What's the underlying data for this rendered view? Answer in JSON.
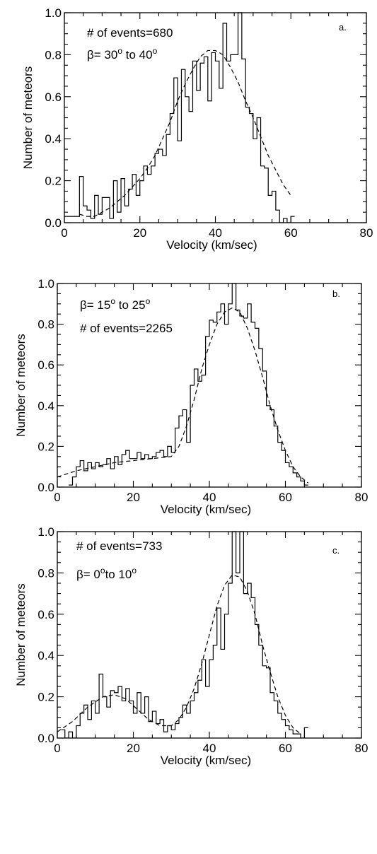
{
  "chart_data": [
    {
      "type": "line",
      "panel_label": "a.",
      "annotations": [
        "# of events=680",
        "β= 30° to 40°"
      ],
      "annotation_parts": [
        {
          "text": "# of events=680"
        },
        {
          "pre": "β= 30",
          "sup1": "o",
          "mid": " to 40",
          "sup2": "o"
        }
      ],
      "xlabel": "Velocity (km/sec)",
      "ylabel": "Number of meteors",
      "xlim": [
        0,
        80
      ],
      "ylim": [
        0,
        1.0
      ],
      "xticks": [
        "0",
        "20",
        "40",
        "60",
        "80"
      ],
      "yticks": [
        "0.0",
        "0.2",
        "0.4",
        "0.6",
        "0.8",
        "1.0"
      ],
      "series": [
        {
          "style": "histogram-step",
          "bin_width": 1,
          "x": [
            0,
            1,
            2,
            3,
            4,
            5,
            6,
            7,
            8,
            9,
            10,
            11,
            12,
            13,
            14,
            15,
            16,
            17,
            18,
            19,
            20,
            21,
            22,
            23,
            24,
            25,
            26,
            27,
            28,
            29,
            30,
            31,
            32,
            33,
            34,
            35,
            36,
            37,
            38,
            39,
            40,
            41,
            42,
            43,
            44,
            45,
            46,
            47,
            48,
            49,
            50,
            51,
            52,
            53,
            54,
            55,
            56,
            57,
            58,
            59,
            60
          ],
          "y": [
            0.03,
            0.03,
            0.03,
            0.03,
            0.22,
            0.08,
            0.06,
            0.02,
            0.13,
            0.04,
            0.12,
            0.12,
            0.02,
            0.2,
            0.05,
            0.21,
            0.08,
            0.16,
            0.23,
            0.13,
            0.2,
            0.27,
            0.23,
            0.27,
            0.33,
            0.35,
            0.32,
            0.42,
            0.52,
            0.69,
            0.39,
            0.73,
            0.6,
            0.53,
            0.77,
            0.63,
            0.76,
            0.79,
            0.58,
            0.81,
            0.77,
            0.64,
            0.95,
            0.77,
            0.8,
            0.8,
            1.0,
            0.78,
            0.55,
            0.52,
            0.4,
            0.5,
            0.27,
            0.26,
            0.13,
            0.15,
            0.06,
            0.0,
            0.02,
            0.0,
            0.03
          ]
        },
        {
          "style": "dashed-fit",
          "x": [
            4,
            6,
            8,
            10,
            12,
            14,
            16,
            18,
            20,
            22,
            24,
            26,
            28,
            30,
            32,
            34,
            36,
            38,
            40,
            42,
            44,
            46,
            48,
            50,
            52,
            54,
            56,
            58,
            60
          ],
          "y": [
            0.04,
            0.03,
            0.03,
            0.05,
            0.07,
            0.1,
            0.13,
            0.17,
            0.21,
            0.26,
            0.32,
            0.4,
            0.48,
            0.58,
            0.66,
            0.73,
            0.79,
            0.82,
            0.82,
            0.8,
            0.74,
            0.67,
            0.58,
            0.5,
            0.41,
            0.32,
            0.25,
            0.18,
            0.13
          ]
        }
      ]
    },
    {
      "type": "line",
      "panel_label": "b.",
      "annotations": [
        "β= 15° to 25°",
        "# of events=2265"
      ],
      "annotation_parts": [
        {
          "pre": "β= 15",
          "sup1": "o",
          "mid": " to 25",
          "sup2": "o"
        },
        {
          "text": "# of events=2265"
        }
      ],
      "xlabel": "Velocity (km/sec)",
      "ylabel": "Number of meteors",
      "xlim": [
        0,
        80
      ],
      "ylim": [
        0,
        1.0
      ],
      "xticks": [
        "0",
        "20",
        "40",
        "60",
        "80"
      ],
      "yticks": [
        "0.0",
        "0.2",
        "0.4",
        "0.6",
        "0.8",
        "1.0"
      ],
      "series": [
        {
          "style": "histogram-step",
          "bin_width": 1,
          "x": [
            3,
            4,
            5,
            6,
            7,
            8,
            9,
            10,
            11,
            12,
            13,
            14,
            15,
            16,
            17,
            18,
            19,
            20,
            21,
            22,
            23,
            24,
            25,
            26,
            27,
            28,
            29,
            30,
            31,
            32,
            33,
            34,
            35,
            36,
            37,
            38,
            39,
            40,
            41,
            42,
            43,
            44,
            45,
            46,
            47,
            48,
            49,
            50,
            51,
            52,
            53,
            54,
            55,
            56,
            57,
            58,
            59,
            60,
            61,
            62,
            63,
            64,
            65
          ],
          "y": [
            0.01,
            0.05,
            0.1,
            0.13,
            0.08,
            0.12,
            0.09,
            0.12,
            0.1,
            0.11,
            0.14,
            0.09,
            0.15,
            0.11,
            0.16,
            0.18,
            0.14,
            0.14,
            0.17,
            0.14,
            0.16,
            0.14,
            0.15,
            0.17,
            0.18,
            0.15,
            0.2,
            0.17,
            0.29,
            0.35,
            0.38,
            0.22,
            0.5,
            0.58,
            0.52,
            0.55,
            0.74,
            0.82,
            0.81,
            0.86,
            0.9,
            0.8,
            0.9,
            1.0,
            0.87,
            0.84,
            0.83,
            0.9,
            0.81,
            0.78,
            0.68,
            0.57,
            0.4,
            0.38,
            0.3,
            0.22,
            0.18,
            0.12,
            0.1,
            0.07,
            0.05,
            0.03,
            0.01
          ]
        },
        {
          "style": "dashed-fit",
          "x": [
            0,
            5,
            10,
            15,
            20,
            25,
            30,
            32,
            34,
            36,
            38,
            40,
            42,
            44,
            46,
            48,
            50,
            52,
            54,
            56,
            58,
            60,
            62,
            64,
            66
          ],
          "y": [
            0.05,
            0.08,
            0.1,
            0.12,
            0.13,
            0.14,
            0.15,
            0.2,
            0.3,
            0.43,
            0.58,
            0.7,
            0.8,
            0.86,
            0.88,
            0.86,
            0.78,
            0.67,
            0.54,
            0.4,
            0.28,
            0.18,
            0.1,
            0.05,
            0.02
          ]
        }
      ]
    },
    {
      "type": "line",
      "panel_label": "c.",
      "annotations": [
        "# of events=733",
        "β= 0° to 10°"
      ],
      "annotation_parts": [
        {
          "text": "# of events=733"
        },
        {
          "pre": "β= 0",
          "sup1": "o",
          "mid": "to 10",
          "sup2": "o"
        }
      ],
      "xlabel": "Velocity (km/sec)",
      "ylabel": "Number of meteors",
      "xlim": [
        0,
        80
      ],
      "ylim": [
        0,
        1.0
      ],
      "xticks": [
        "0",
        "20",
        "40",
        "60",
        "80"
      ],
      "yticks": [
        "0.0",
        "0.2",
        "0.4",
        "0.6",
        "0.8",
        "1.0"
      ],
      "series": [
        {
          "style": "histogram-step",
          "bin_width": 1,
          "x": [
            1,
            2,
            3,
            4,
            5,
            6,
            7,
            8,
            9,
            10,
            11,
            12,
            13,
            14,
            15,
            16,
            17,
            18,
            19,
            20,
            21,
            22,
            23,
            24,
            25,
            26,
            27,
            28,
            29,
            30,
            31,
            32,
            33,
            34,
            35,
            36,
            37,
            38,
            39,
            40,
            41,
            42,
            43,
            44,
            45,
            46,
            47,
            48,
            49,
            50,
            51,
            52,
            53,
            54,
            55,
            56,
            57,
            58,
            59,
            60,
            61,
            62,
            63,
            64,
            65
          ],
          "y": [
            0.04,
            0.0,
            0.03,
            0.0,
            0.06,
            0.12,
            0.16,
            0.09,
            0.18,
            0.12,
            0.31,
            0.2,
            0.15,
            0.23,
            0.22,
            0.25,
            0.18,
            0.24,
            0.18,
            0.12,
            0.22,
            0.12,
            0.2,
            0.08,
            0.13,
            0.07,
            0.09,
            0.03,
            0.06,
            0.04,
            0.07,
            0.1,
            0.16,
            0.12,
            0.18,
            0.22,
            0.28,
            0.38,
            0.25,
            0.38,
            0.45,
            0.63,
            0.43,
            0.6,
            0.75,
            1.0,
            0.8,
            1.0,
            0.7,
            0.75,
            0.68,
            0.55,
            0.45,
            0.35,
            0.34,
            0.22,
            0.18,
            0.12,
            0.09,
            0.06,
            0.04,
            0.02,
            0.02,
            0.0,
            0.05
          ]
        },
        {
          "style": "dashed-fit",
          "x": [
            0,
            4,
            8,
            12,
            15,
            18,
            21,
            24,
            27,
            30,
            32,
            34,
            36,
            38,
            40,
            42,
            44,
            46,
            48,
            50,
            52,
            54,
            56,
            58,
            60,
            62,
            64
          ],
          "y": [
            0.03,
            0.08,
            0.15,
            0.2,
            0.21,
            0.19,
            0.14,
            0.09,
            0.06,
            0.06,
            0.09,
            0.15,
            0.24,
            0.36,
            0.5,
            0.64,
            0.74,
            0.79,
            0.78,
            0.71,
            0.6,
            0.45,
            0.32,
            0.2,
            0.11,
            0.05,
            0.02
          ]
        }
      ]
    }
  ]
}
